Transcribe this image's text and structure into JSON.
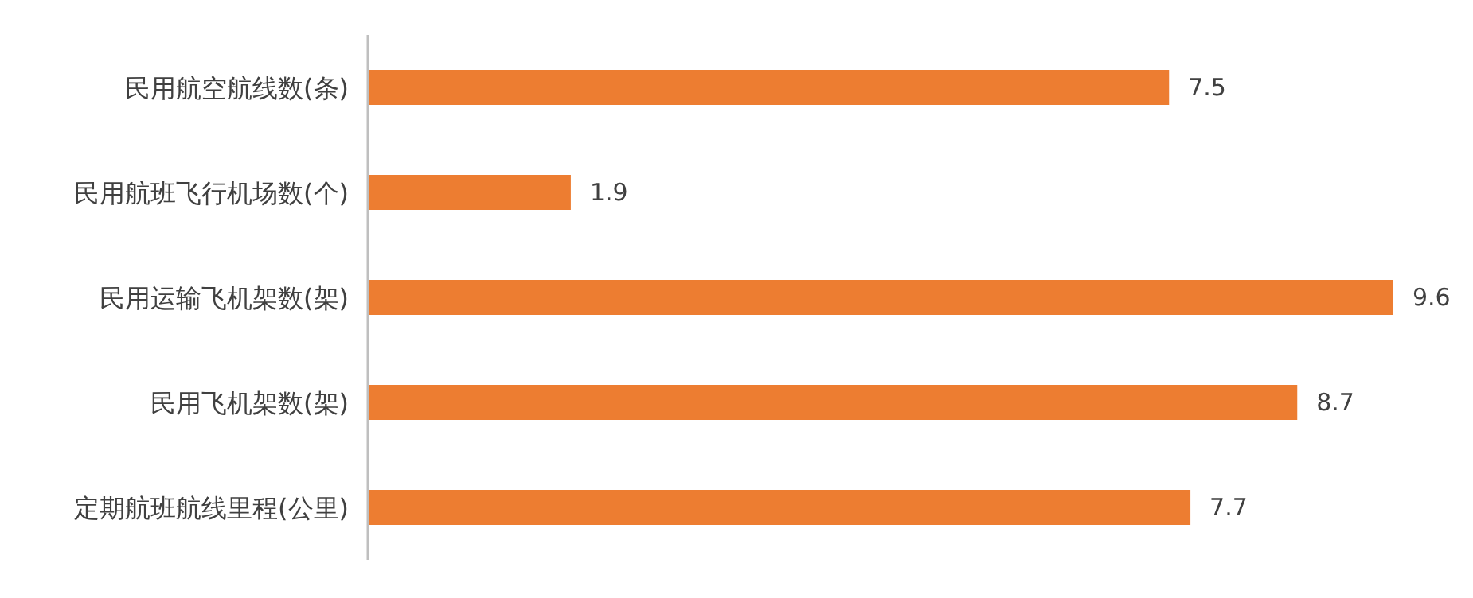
{
  "chart_data": {
    "type": "bar",
    "orientation": "horizontal",
    "categories": [
      "民用航空航线数(条)",
      "民用航班飞行机场数(个)",
      "民用运输飞机架数(架)",
      "民用飞机架数(架)",
      "定期航班航线里程(公里)"
    ],
    "values": [
      7.5,
      1.9,
      9.6,
      8.7,
      7.7
    ],
    "color": "#ed7d31",
    "data_labels": true
  }
}
